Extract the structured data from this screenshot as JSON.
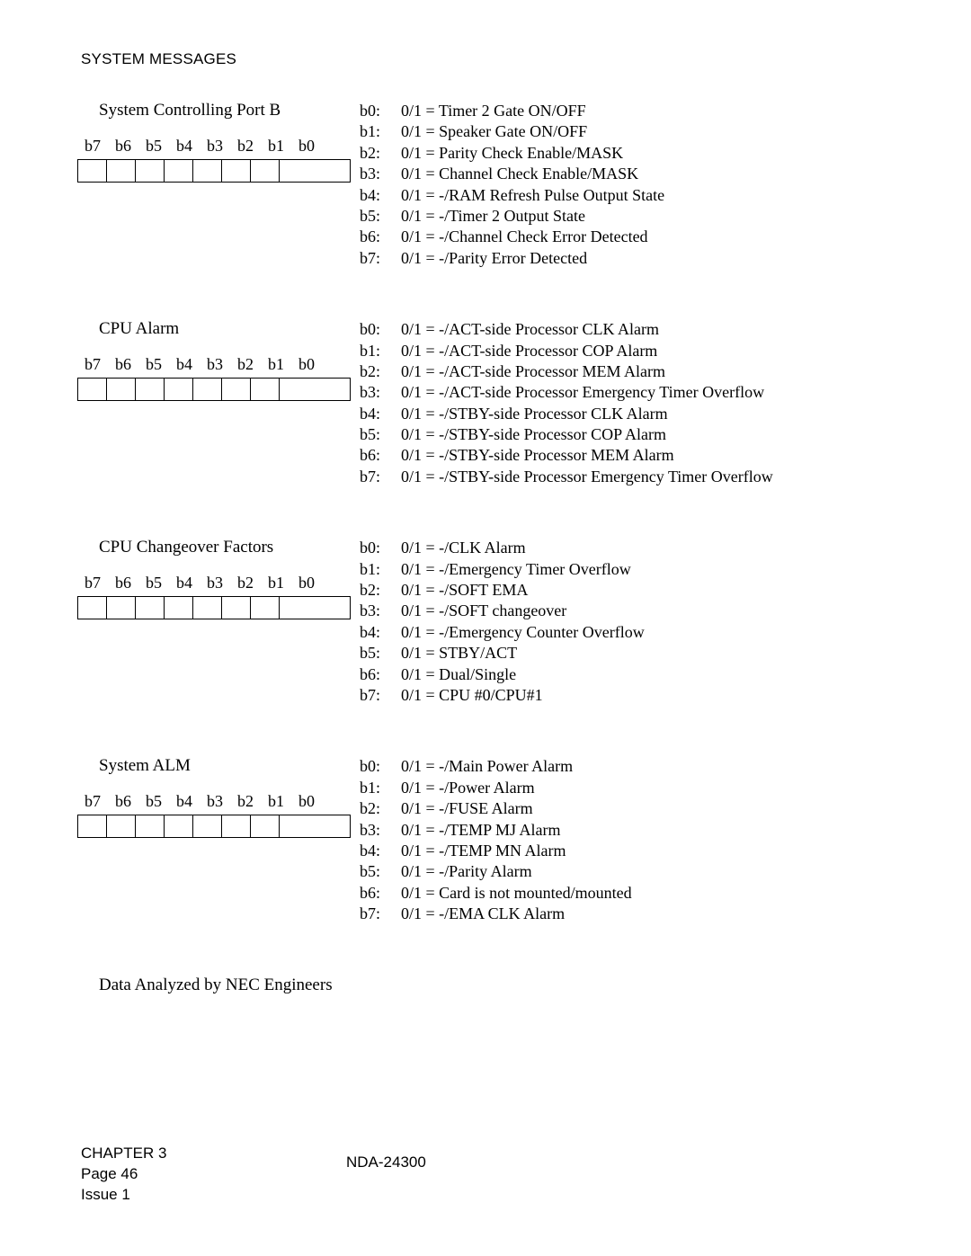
{
  "header": "SYSTEM MESSAGES",
  "bits": [
    "b7",
    "b6",
    "b5",
    "b4",
    "b3",
    "b2",
    "b1",
    "b0"
  ],
  "sections": [
    {
      "title": "System Controlling Port B",
      "defs": [
        {
          "k": "b0:",
          "v": "0/1 = Timer 2 Gate ON/OFF"
        },
        {
          "k": "b1:",
          "v": "0/1 = Speaker Gate ON/OFF"
        },
        {
          "k": "b2:",
          "v": "0/1 = Parity Check Enable/MASK"
        },
        {
          "k": "b3:",
          "v": "0/1 = Channel Check Enable/MASK"
        },
        {
          "k": "b4:",
          "v": "0/1 = -/RAM Refresh Pulse Output State"
        },
        {
          "k": "b5:",
          "v": "0/1 = -/Timer 2 Output State"
        },
        {
          "k": "b6:",
          "v": "0/1 = -/Channel Check Error Detected"
        },
        {
          "k": "b7:",
          "v": "0/1 = -/Parity Error Detected"
        }
      ]
    },
    {
      "title": "CPU Alarm",
      "defs": [
        {
          "k": "b0:",
          "v": "0/1 = -/ACT-side Processor CLK Alarm"
        },
        {
          "k": "b1:",
          "v": "0/1 = -/ACT-side Processor COP Alarm"
        },
        {
          "k": "b2:",
          "v": "0/1 = -/ACT-side Processor MEM Alarm"
        },
        {
          "k": "b3:",
          "v": "0/1 = -/ACT-side Processor Emergency Timer Overflow"
        },
        {
          "k": "b4:",
          "v": "0/1 = -/STBY-side Processor CLK Alarm"
        },
        {
          "k": "b5:",
          "v": "0/1 = -/STBY-side Processor COP Alarm"
        },
        {
          "k": "b6:",
          "v": "0/1 = -/STBY-side Processor MEM Alarm"
        },
        {
          "k": "b7:",
          "v": "0/1 = -/STBY-side Processor Emergency Timer Overflow"
        }
      ]
    },
    {
      "title": "CPU Changeover Factors",
      "defs": [
        {
          "k": "b0:",
          "v": "0/1 = -/CLK Alarm"
        },
        {
          "k": "b1:",
          "v": "0/1 = -/Emergency Timer Overflow"
        },
        {
          "k": "b2:",
          "v": "0/1 = -/SOFT EMA"
        },
        {
          "k": "b3:",
          "v": "0/1 = -/SOFT changeover"
        },
        {
          "k": "b4:",
          "v": "0/1 = -/Emergency Counter Overflow"
        },
        {
          "k": "b5:",
          "v": "0/1 = STBY/ACT"
        },
        {
          "k": "b6:",
          "v": "0/1 = Dual/Single"
        },
        {
          "k": "b7:",
          "v": "0/1 = CPU #0/CPU#1"
        }
      ]
    },
    {
      "title": "System ALM",
      "defs": [
        {
          "k": "b0:",
          "v": "0/1 = -/Main Power Alarm"
        },
        {
          "k": "b1:",
          "v": "0/1 = -/Power Alarm"
        },
        {
          "k": "b2:",
          "v": "0/1 = -/FUSE Alarm"
        },
        {
          "k": "b3:",
          "v": "0/1 = -/TEMP MJ Alarm"
        },
        {
          "k": "b4:",
          "v": "0/1 = -/TEMP MN Alarm"
        },
        {
          "k": "b5:",
          "v": "0/1 = -/Parity Alarm"
        },
        {
          "k": "b6:",
          "v": "0/1 = Card is not mounted/mounted"
        },
        {
          "k": "b7:",
          "v": "0/1 = -/EMA CLK Alarm"
        }
      ]
    }
  ],
  "footnote": "Data Analyzed by NEC Engineers",
  "footer": {
    "chapter": "CHAPTER 3",
    "page": "Page 46",
    "issue": "Issue 1",
    "doc": "NDA-24300"
  }
}
